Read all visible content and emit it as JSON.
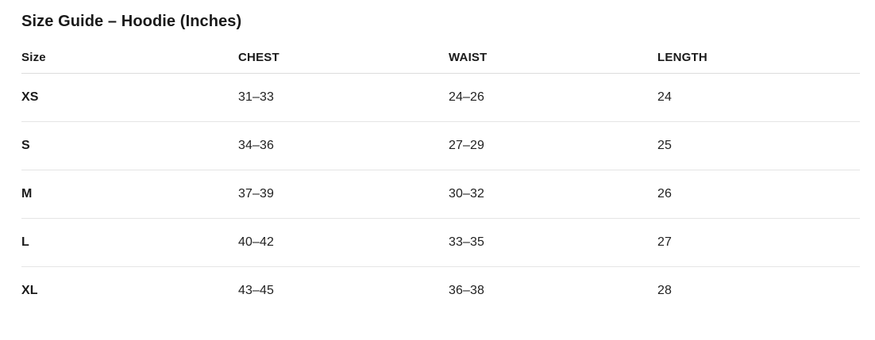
{
  "page": {
    "title": "Size Guide – Hoodie (Inches)"
  },
  "table": {
    "columns": [
      {
        "key": "size",
        "label": "Size"
      },
      {
        "key": "chest",
        "label": "CHEST"
      },
      {
        "key": "waist",
        "label": "WAIST"
      },
      {
        "key": "length",
        "label": "LENGTH"
      }
    ],
    "rows": [
      {
        "size": "XS",
        "chest": "31–33",
        "waist": "24–26",
        "length": "24"
      },
      {
        "size": "S",
        "chest": "34–36",
        "waist": "27–29",
        "length": "25"
      },
      {
        "size": "M",
        "chest": "37–39",
        "waist": "30–32",
        "length": "26"
      },
      {
        "size": "L",
        "chest": "40–42",
        "waist": "33–35",
        "length": "27"
      },
      {
        "size": "XL",
        "chest": "43–45",
        "waist": "36–38",
        "length": "28"
      }
    ]
  },
  "colors": {
    "background": "#ffffff",
    "text": "#1a1a1a",
    "header_border": "#dcdcdc",
    "row_border": "#e5e5e5"
  }
}
